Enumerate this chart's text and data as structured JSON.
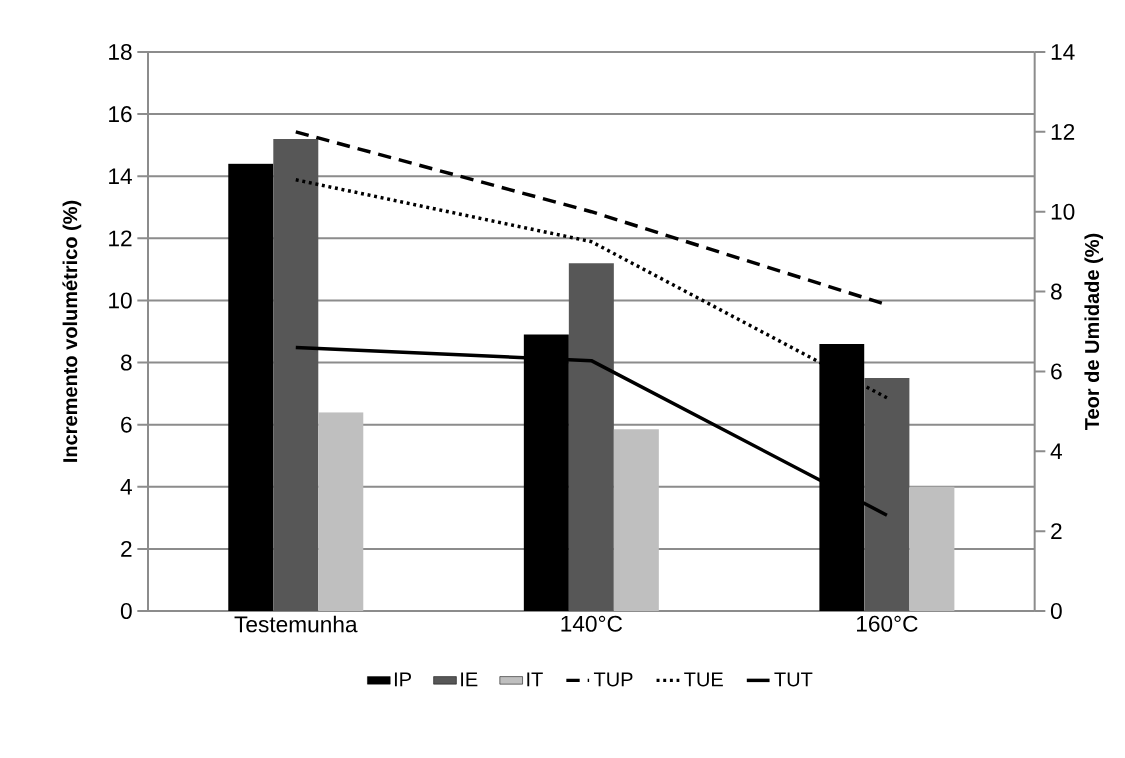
{
  "chart_data": {
    "type": "bar",
    "categories": [
      "Testemunha",
      "140°C",
      "160°C"
    ],
    "ylabel": "Incremento volumétrico (%)",
    "y2label": "Teor de Umidade (%)",
    "ylim": [
      0,
      18
    ],
    "yticks": [
      0,
      2,
      4,
      6,
      8,
      10,
      12,
      14,
      16,
      18
    ],
    "y2lim": [
      0,
      14
    ],
    "y2ticks": [
      0,
      2,
      4,
      6,
      8,
      10,
      12,
      14
    ],
    "grid": "y",
    "legend": "bottom",
    "series": [
      {
        "name": "IP",
        "color": "#000000",
        "values": [
          14.4,
          8.9,
          8.6
        ]
      },
      {
        "name": "IE",
        "color": "#575757",
        "values": [
          15.2,
          11.2,
          7.5
        ]
      },
      {
        "name": "IT",
        "color": "#bfbfbf",
        "values": [
          6.4,
          5.85,
          4.0
        ]
      },
      {
        "name": "TUP",
        "type": "line",
        "axis": "y2",
        "color": "#000000",
        "line_style": "dashed",
        "values": [
          12.0,
          10.0,
          7.67
        ]
      },
      {
        "name": "TUE",
        "type": "line",
        "axis": "y2",
        "color": "#000000",
        "line_style": "dotted",
        "values": [
          10.8,
          9.25,
          5.34
        ]
      },
      {
        "name": "TUT",
        "type": "line",
        "axis": "y2",
        "color": "#000000",
        "line_style": "solid",
        "values": [
          6.6,
          6.27,
          2.4
        ]
      }
    ]
  }
}
